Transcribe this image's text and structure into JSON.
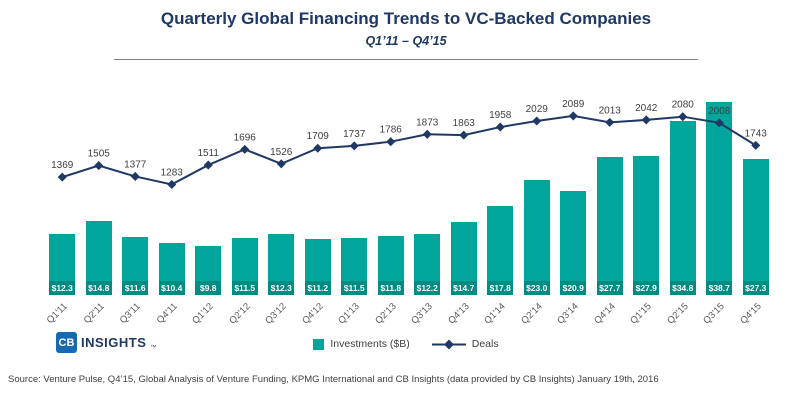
{
  "header": {
    "title": "Quarterly Global Financing Trends to VC-Backed Companies",
    "subtitle": "Q1’11 – Q4’15"
  },
  "chart_data": {
    "type": "bar",
    "subtype": "combo-bar-line",
    "title": "Quarterly Global Financing Trends to VC-Backed Companies",
    "subtitle": "Q1’11 – Q4’15",
    "categories": [
      "Q1'11",
      "Q2'11",
      "Q3'11",
      "Q4'11",
      "Q1'12",
      "Q2'12",
      "Q3'12",
      "Q4'12",
      "Q1'13",
      "Q2'13",
      "Q3'13",
      "Q4'13",
      "Q1'14",
      "Q2'14",
      "Q3'14",
      "Q4'14",
      "Q1'15",
      "Q2'15",
      "Q3'15",
      "Q4'15"
    ],
    "series": [
      {
        "name": "Investments ($B)",
        "type": "bar",
        "color": "#00A69C",
        "values": [
          12.3,
          14.8,
          11.6,
          10.4,
          9.8,
          11.5,
          12.3,
          11.2,
          11.5,
          11.8,
          12.2,
          14.7,
          17.8,
          23.0,
          20.9,
          27.7,
          27.9,
          34.8,
          38.7,
          27.3
        ],
        "data_labels": [
          "$12.3",
          "$14.8",
          "$11.6",
          "$10.4",
          "$9.8",
          "$11.5",
          "$12.3",
          "$11.2",
          "$11.5",
          "$11.8",
          "$12.2",
          "$14.7",
          "$17.8",
          "$23.0",
          "$20.9",
          "$27.7",
          "$27.9",
          "$34.8",
          "$38.7",
          "$27.3"
        ]
      },
      {
        "name": "Deals",
        "type": "line",
        "color": "#1F3864",
        "marker": "diamond",
        "values": [
          1369,
          1505,
          1377,
          1283,
          1511,
          1696,
          1526,
          1709,
          1737,
          1786,
          1873,
          1863,
          1958,
          2029,
          2089,
          2013,
          2042,
          2080,
          2008,
          1743
        ]
      }
    ],
    "bar_axis_max": 40,
    "line_axis_range": [
      1200,
      2100
    ],
    "grid": false,
    "legend_position": "bottom",
    "x_tick_rotation": -45
  },
  "legend": {
    "items": [
      {
        "label": "Investments ($B)",
        "swatch": "teal-square"
      },
      {
        "label": "Deals",
        "swatch": "navy-line-diamond"
      }
    ]
  },
  "footer": {
    "logo": {
      "icon_text": "CB",
      "name": "INSIGHTS",
      "trademark": "™"
    },
    "source": "Source: Venture Pulse, Q4’15, Global Analysis of Venture Funding, KPMG International and CB Insights (data provided by CB Insights) January 19th, 2016"
  },
  "colors": {
    "title_text": "#1F3864",
    "bar": "#00A69C",
    "line": "#1F3864",
    "bar_label_text": "#FFFFFF",
    "deal_label_text": "#3F3F3F",
    "logo_blue": "#1668B2",
    "source_text": "#404040"
  }
}
